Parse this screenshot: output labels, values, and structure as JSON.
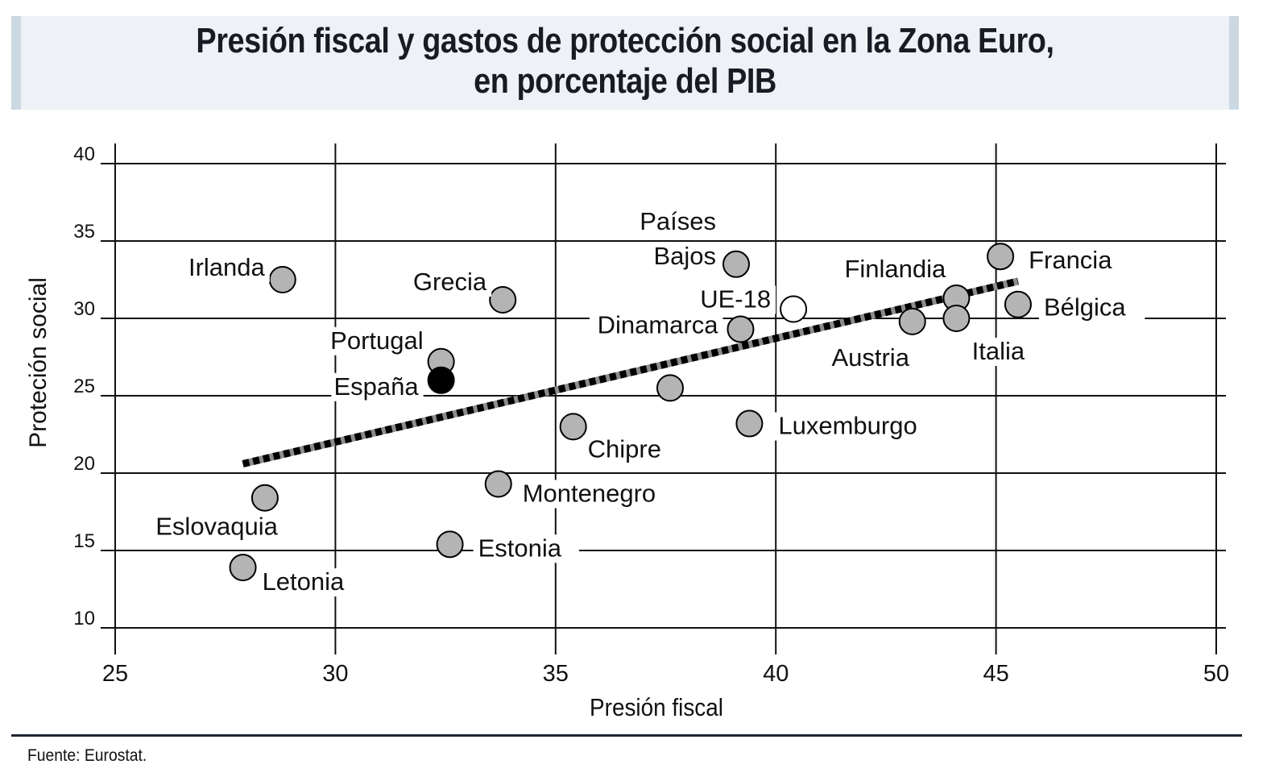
{
  "chart_data": {
    "type": "scatter",
    "title": "Presión fiscal y gastos de protección social en la Zona Euro,",
    "subtitle": "en porcentaje del PIB",
    "xlabel": "Presión fiscal",
    "ylabel": "Proteción social",
    "xlim": [
      25,
      50
    ],
    "ylim": [
      10,
      40
    ],
    "xticks": [
      25,
      30,
      35,
      40,
      45,
      50
    ],
    "yticks": [
      10,
      15,
      20,
      25,
      30,
      35,
      40
    ],
    "grid": true,
    "points": [
      {
        "label": "Irlanda",
        "x": 28.8,
        "y": 32.5,
        "kind": "country"
      },
      {
        "label": "Grecia",
        "x": 33.8,
        "y": 31.2,
        "kind": "country"
      },
      {
        "label": "Portugal",
        "x": 32.4,
        "y": 27.2,
        "kind": "country"
      },
      {
        "label": "España",
        "x": 32.4,
        "y": 26.0,
        "kind": "highlight"
      },
      {
        "label": "Chipre",
        "x": 35.4,
        "y": 23.0,
        "kind": "country"
      },
      {
        "label": "Montenegro",
        "x": 33.7,
        "y": 19.3,
        "kind": "country"
      },
      {
        "label": "Estonia",
        "x": 32.6,
        "y": 15.4,
        "kind": "country"
      },
      {
        "label": "Eslovaquia",
        "x": 28.4,
        "y": 18.4,
        "kind": "country"
      },
      {
        "label": "Letonia",
        "x": 27.9,
        "y": 13.9,
        "kind": "country"
      },
      {
        "label": "Países Bajos",
        "x": 39.1,
        "y": 33.5,
        "kind": "country"
      },
      {
        "label": "Dinamarca",
        "x": 39.2,
        "y": 29.3,
        "kind": "country"
      },
      {
        "label": "UE-18",
        "x": 40.4,
        "y": 30.6,
        "kind": "aggregate"
      },
      {
        "label": "",
        "x": 37.6,
        "y": 25.5,
        "kind": "country"
      },
      {
        "label": "Luxemburgo",
        "x": 39.4,
        "y": 23.2,
        "kind": "country"
      },
      {
        "label": "Austria",
        "x": 43.1,
        "y": 29.8,
        "kind": "country"
      },
      {
        "label": "Finlandia",
        "x": 44.1,
        "y": 31.3,
        "kind": "country"
      },
      {
        "label": "Italia",
        "x": 44.1,
        "y": 30.0,
        "kind": "country"
      },
      {
        "label": "Francia",
        "x": 45.1,
        "y": 34.0,
        "kind": "country"
      },
      {
        "label": "Bélgica",
        "x": 45.5,
        "y": 30.9,
        "kind": "country"
      }
    ],
    "trendline": {
      "x": [
        27.9,
        45.5
      ],
      "y": [
        20.6,
        32.4
      ]
    },
    "colors": {
      "country": "#b4b4b4",
      "highlight": "#000000",
      "aggregate": "#ffffff",
      "trend_dark": "#000000",
      "trend_light": "#8c8c8c"
    }
  },
  "source": "Fuente: Eurostat."
}
